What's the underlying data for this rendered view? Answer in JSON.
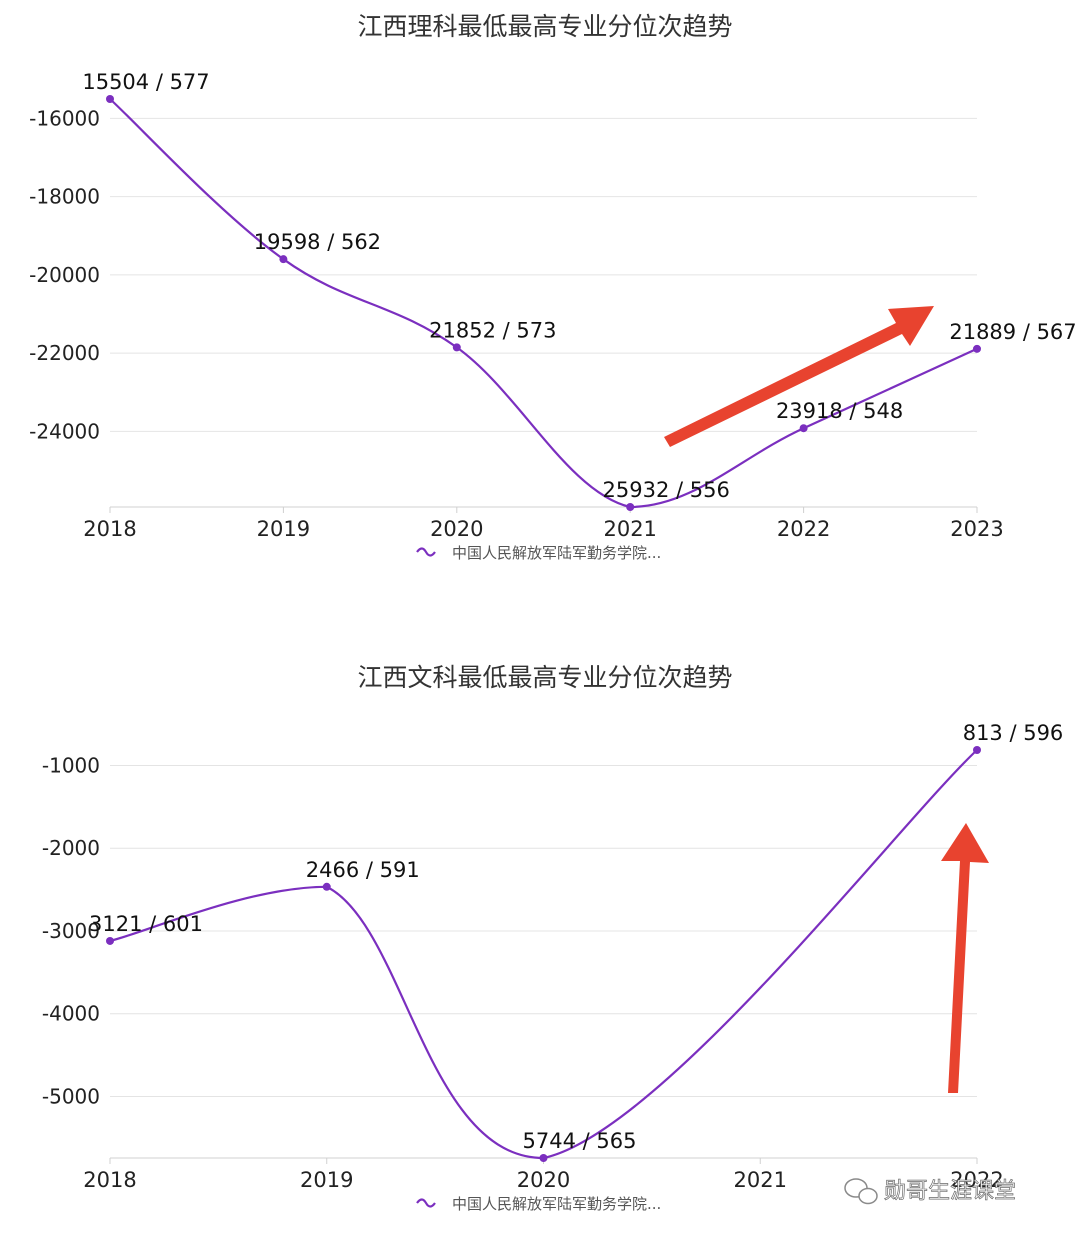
{
  "watermark": {
    "text": "勋哥生涯课堂"
  },
  "chart_data": [
    {
      "type": "line",
      "title": "江西理科最低最高专业分位次趋势",
      "categories": [
        "2018",
        "2019",
        "2020",
        "2021",
        "2022",
        "2023"
      ],
      "series": [
        {
          "name": "中国人民解放军陆军勤务学院...",
          "color": "#7b2fbf",
          "values": [
            -15504,
            -19598,
            -21852,
            -25932,
            -23918,
            -21889
          ],
          "labels": [
            "15504 / 577",
            "19598 / 562",
            "21852 / 573",
            "25932 / 556",
            "23918 / 548",
            "21889 / 567"
          ]
        }
      ],
      "yticks": [
        -16000,
        -18000,
        -20000,
        -22000,
        -24000
      ],
      "ylim": [
        -25932,
        -15504
      ],
      "grid": true,
      "legend": "bottom-center",
      "annotation": {
        "shape": "arrow",
        "color": "#e8432f",
        "direction": "up-right"
      }
    },
    {
      "type": "line",
      "title": "江西文科最低最高专业分位次趋势",
      "categories": [
        "2018",
        "2019",
        "2020",
        "2021",
        "2022"
      ],
      "series": [
        {
          "name": "中国人民解放军陆军勤务学院...",
          "color": "#7b2fbf",
          "values": [
            -3121,
            -2466,
            -5744,
            null,
            -813
          ],
          "labels": [
            "3121 / 601",
            "2466 / 591",
            "5744 / 565",
            null,
            "813 / 596"
          ]
        }
      ],
      "yticks": [
        -1000,
        -2000,
        -3000,
        -4000,
        -5000
      ],
      "ylim": [
        -5744,
        -813
      ],
      "grid": true,
      "legend": "bottom-center",
      "annotation": {
        "shape": "arrow",
        "color": "#e8432f",
        "direction": "up"
      }
    }
  ]
}
